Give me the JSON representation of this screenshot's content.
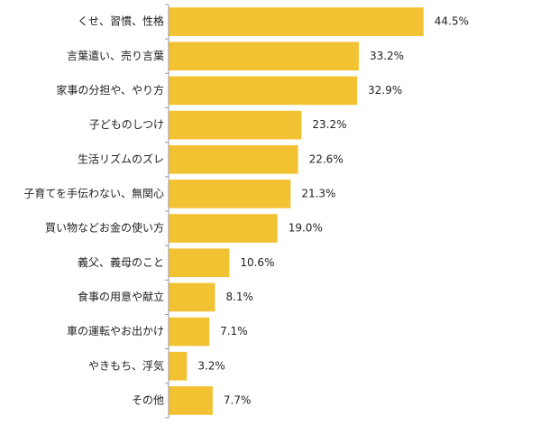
{
  "chart_data": {
    "type": "bar",
    "orientation": "horizontal",
    "categories": [
      "くせ、習慣、性格",
      "言葉遣い、売り言葉",
      "家事の分担や、やり方",
      "子どものしつけ",
      "生活リズムのズレ",
      "子育てを手伝わない、無関心",
      "買い物などお金の使い方",
      "義父、義母のこと",
      "食事の用意や献立",
      "車の運転やお出かけ",
      "やきもち、浮気",
      "その他"
    ],
    "values": [
      44.5,
      33.2,
      32.9,
      23.2,
      22.6,
      21.3,
      19.0,
      10.6,
      8.1,
      7.1,
      3.2,
      7.7
    ],
    "value_labels": [
      "44.5%",
      "33.2%",
      "32.9%",
      "23.2%",
      "22.6%",
      "21.3%",
      "19.0%",
      "10.6%",
      "8.1%",
      "7.1%",
      "3.2%",
      "7.7%"
    ],
    "xlim": [
      0,
      65
    ],
    "bar_color": "#f3c232",
    "grid": false,
    "legend": "none"
  }
}
